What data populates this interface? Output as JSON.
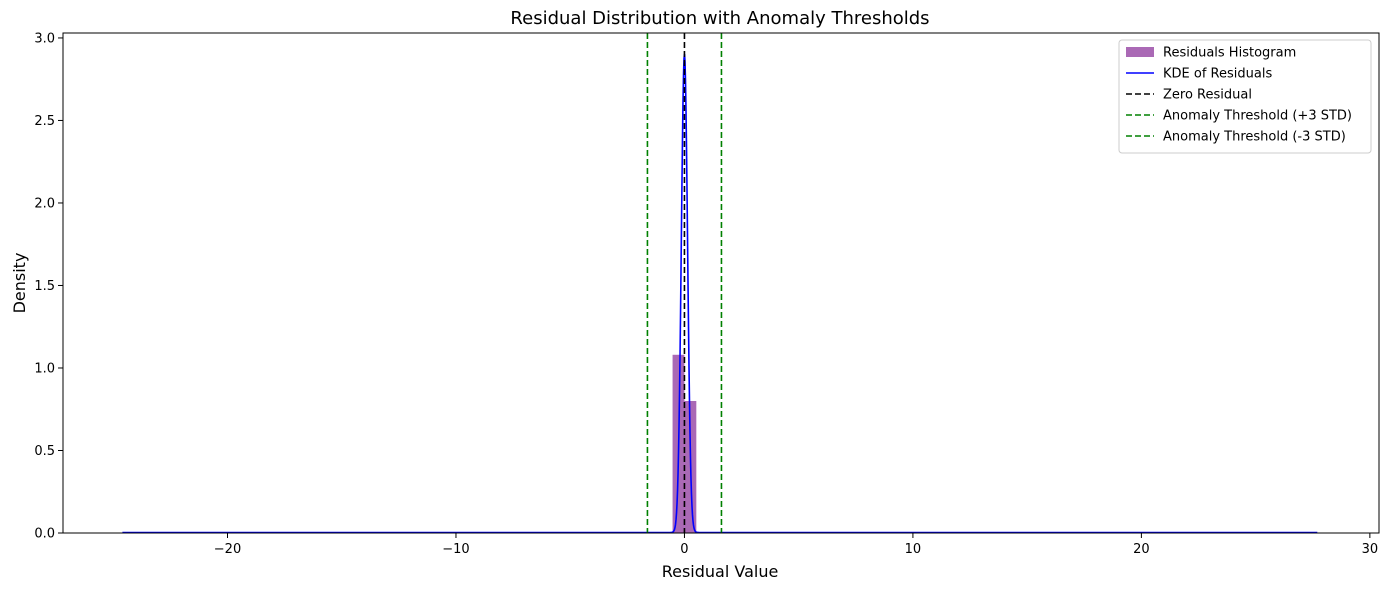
{
  "chart_data": {
    "type": "histogram",
    "title": "Residual Distribution with Anomaly Thresholds",
    "xlabel": "Residual Value",
    "ylabel": "Density",
    "xlim": [
      -27.2,
      30.4
    ],
    "ylim": [
      0,
      3.03
    ],
    "x_ticks": [
      -20,
      -10,
      0,
      10,
      20,
      30
    ],
    "x_tick_labels": [
      "−20",
      "−10",
      "0",
      "10",
      "20",
      "30"
    ],
    "y_ticks": [
      0,
      0.5,
      1.0,
      1.5,
      2.0,
      2.5,
      3.0
    ],
    "y_tick_labels": [
      "0.0",
      "0.5",
      "1.0",
      "1.5",
      "2.0",
      "2.5",
      "3.0"
    ],
    "grid": false,
    "legend_position": "top-right",
    "histogram": {
      "name": "Residuals Histogram",
      "color": "#9b4fa8",
      "bins": [
        {
          "x0": -0.52,
          "x1": 0.0,
          "value": 1.08
        },
        {
          "x0": 0.0,
          "x1": 0.52,
          "value": 0.8
        }
      ]
    },
    "kde": {
      "name": "KDE of Residuals",
      "color": "#0000ff",
      "x_range": [
        -24.6,
        27.7
      ],
      "peak": 2.9,
      "center": 0.0,
      "bandwidth": 0.137
    },
    "reference_lines": [
      {
        "name": "Zero Residual",
        "x": 0.0,
        "color": "#000000",
        "style": "dashed"
      },
      {
        "name": "Anomaly Threshold (+3 STD)",
        "x": 1.62,
        "color": "#008000",
        "style": "dashed"
      },
      {
        "name": "Anomaly Threshold (-3 STD)",
        "x": -1.62,
        "color": "#008000",
        "style": "dashed"
      }
    ],
    "legend": [
      {
        "label": "Residuals Histogram",
        "kind": "patch",
        "color": "#9b4fa8"
      },
      {
        "label": "KDE of Residuals",
        "kind": "line",
        "color": "#0000ff",
        "style": "solid"
      },
      {
        "label": "Zero Residual",
        "kind": "line",
        "color": "#000000",
        "style": "dashed"
      },
      {
        "label": "Anomaly Threshold (+3 STD)",
        "kind": "line",
        "color": "#008000",
        "style": "dashed"
      },
      {
        "label": "Anomaly Threshold (-3 STD)",
        "kind": "line",
        "color": "#008000",
        "style": "dashed"
      }
    ]
  }
}
